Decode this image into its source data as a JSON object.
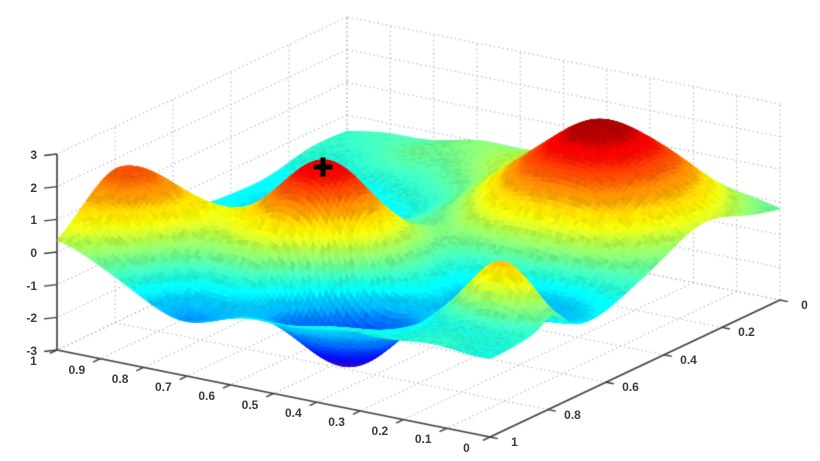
{
  "chart_data": {
    "type": "surface",
    "title": "",
    "colormap": "jet",
    "background": "#ffffff",
    "grid": {
      "visible": true,
      "style": "dotted",
      "color": "#b3b3b3"
    },
    "axis_color": "#3d3d3d",
    "tick_text_color": "#3a3a3a",
    "axes": {
      "x": {
        "range": [
          0,
          1
        ],
        "tick_labels": [
          "1",
          "0.9",
          "0.8",
          "0.7",
          "0.6",
          "0.5",
          "0.4",
          "0.3",
          "0.2",
          "0.1",
          "0"
        ],
        "tick_values": [
          1,
          0.9,
          0.8,
          0.7,
          0.6,
          0.5,
          0.4,
          0.3,
          0.2,
          0.1,
          0
        ]
      },
      "y": {
        "range": [
          0,
          1
        ],
        "tick_labels": [
          "1",
          "0.8",
          "0.6",
          "0.4",
          "0.2",
          "0"
        ],
        "tick_values": [
          1,
          0.8,
          0.6,
          0.4,
          0.2,
          0
        ]
      },
      "z": {
        "range": [
          -3,
          3
        ],
        "tick_labels": [
          "3",
          "2",
          "1",
          "0",
          "-1",
          "-2",
          "-3"
        ],
        "tick_values": [
          3,
          2,
          1,
          0,
          -1,
          -2,
          -3
        ]
      }
    },
    "marker": {
      "symbol": "+",
      "color": "#000000",
      "x": 0.6,
      "y": 0.68,
      "z": 2.4
    },
    "features": {
      "peaks": [
        {
          "x": 0.26,
          "y": 0.26,
          "z": 2.7,
          "note": "large red dome, right of view"
        },
        {
          "x": 0.6,
          "y": 0.68,
          "z": 2.4,
          "note": "red peak with black + marker"
        }
      ],
      "valleys": [
        {
          "x": 0.46,
          "y": 0.83,
          "z": -2.6,
          "note": "deep purple-blue pit, front center"
        },
        {
          "x": 0.74,
          "y": 0.97,
          "z": -1.2,
          "note": "shallow blue dip, front left"
        },
        {
          "x": 0.2,
          "y": 0.61,
          "z": -1.5,
          "note": "blue dip behind front-right fold"
        }
      ],
      "ridges": [
        {
          "x": 0.97,
          "y": 0.79,
          "z": 1.6,
          "note": "orange ridge near left edge"
        },
        {
          "x": 0.12,
          "y": 0.78,
          "z": 1.1,
          "note": "narrow fold showing rainbow silhouette edge"
        }
      ]
    },
    "surface_model": {
      "description": "z(x,y) = base + ripple + sum of gaussians a*exp(-((x-cx)^2/(2*sx^2)+(y-cy)^2/(2*sy^2))), clamped to [-2.95,2.95]",
      "base": -0.55,
      "clamp": [
        -2.95,
        2.95
      ],
      "ripple": {
        "amp": 0.06,
        "kx": 28,
        "ky": 22,
        "px": 1.0,
        "py": 2.0
      },
      "gaussians": [
        {
          "a": 0.55,
          "cx": 1.0,
          "cy": 1.0,
          "sx": 0.22,
          "sy": 0.22
        },
        {
          "a": 3.3,
          "cx": 0.25,
          "cy": 0.25,
          "sx": 0.16,
          "sy": 0.16
        },
        {
          "a": 3.1,
          "cx": 0.6,
          "cy": 0.68,
          "sx": 0.105,
          "sy": 0.105
        },
        {
          "a": -2.5,
          "cx": 0.46,
          "cy": 0.83,
          "sx": 0.1,
          "sy": 0.075
        },
        {
          "a": -1.0,
          "cx": 0.2,
          "cy": 0.61,
          "sx": 0.14,
          "sy": 0.1
        },
        {
          "a": 2.0,
          "cx": 0.97,
          "cy": 0.79,
          "sx": 0.12,
          "sy": 0.12
        },
        {
          "a": -1.1,
          "cx": 0.74,
          "cy": 0.97,
          "sx": 0.12,
          "sy": 0.09
        },
        {
          "a": -0.5,
          "cx": 0.8,
          "cy": 0.4,
          "sx": 0.18,
          "sy": 0.15
        },
        {
          "a": 0.6,
          "cx": 0.62,
          "cy": 0.05,
          "sx": 0.2,
          "sy": 0.12
        },
        {
          "a": 1.9,
          "cx": 0.12,
          "cy": 0.78,
          "sx": 0.07,
          "sy": 0.035
        }
      ],
      "colormap_low_end": "#5a1ec8"
    }
  }
}
